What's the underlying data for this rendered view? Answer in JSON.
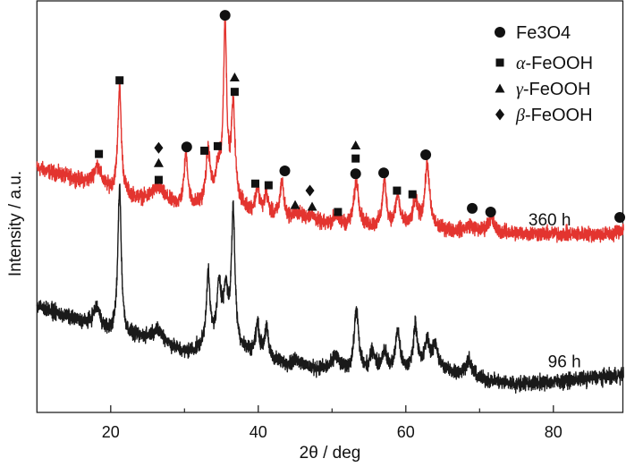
{
  "chart_data": {
    "type": "line",
    "title": "",
    "xlabel": "2θ / deg",
    "ylabel": "Intensity / a.u.",
    "xlim": [
      10,
      89.5
    ],
    "ylim": [
      0,
      100
    ],
    "x_ticks": [
      20,
      40,
      60,
      80
    ],
    "x_minor_ticks": [
      30,
      50,
      70
    ],
    "y_ticks": [],
    "grid": false,
    "legend_position": "top-right",
    "legend": [
      {
        "label": "Fe3O4",
        "marker": "circle"
      },
      {
        "label": "α-FeOOH",
        "marker": "square"
      },
      {
        "label": "γ-FeOOH",
        "marker": "triangle"
      },
      {
        "label": "β-FeOOH",
        "marker": "diamond"
      }
    ],
    "series": [
      {
        "name": "360 h",
        "color": "#e3342f",
        "label_position": [
          79.5,
          47
        ],
        "baseline": [
          [
            10,
            59.3
          ],
          [
            15,
            56.7
          ],
          [
            20,
            53.5
          ],
          [
            25,
            50.6
          ],
          [
            30,
            49.1
          ],
          [
            35,
            48.5
          ],
          [
            40,
            47.6
          ],
          [
            45,
            45.9
          ],
          [
            50,
            44.8
          ],
          [
            55,
            44.8
          ],
          [
            60,
            44.8
          ],
          [
            65,
            44.2
          ],
          [
            70,
            43.7
          ],
          [
            80,
            43.3
          ],
          [
            88,
            43.3
          ],
          [
            89.5,
            44.8
          ]
        ],
        "peaks": [
          [
            18.2,
            5,
            0.6
          ],
          [
            21.2,
            26,
            0.28
          ],
          [
            26.4,
            4,
            1.2
          ],
          [
            30.2,
            13,
            0.3
          ],
          [
            33.2,
            12.5,
            0.35
          ],
          [
            34.6,
            6,
            0.4
          ],
          [
            35.5,
            5,
            1.6
          ],
          [
            35.5,
            40,
            0.25
          ],
          [
            36.6,
            22,
            0.3
          ],
          [
            39.9,
            6,
            0.3
          ],
          [
            41.1,
            5,
            0.3
          ],
          [
            43.2,
            9,
            0.3
          ],
          [
            45.3,
            2,
            0.8
          ],
          [
            47.2,
            2,
            0.8
          ],
          [
            50.5,
            2.5,
            0.6
          ],
          [
            53.3,
            11,
            0.4
          ],
          [
            57.1,
            11,
            0.32
          ],
          [
            58.9,
            7.5,
            0.35
          ],
          [
            61.3,
            6,
            0.4
          ],
          [
            62.9,
            15.5,
            0.38
          ],
          [
            68.7,
            1.5,
            0.6
          ],
          [
            71.5,
            3.5,
            0.5
          ]
        ],
        "noise": 1.1,
        "markers": [
          {
            "phase": "square",
            "x": 18.4,
            "y": 62.8
          },
          {
            "phase": "square",
            "x": 21.2,
            "y": 80.7
          },
          {
            "phase": "diamond",
            "x": 26.5,
            "y": 64.3
          },
          {
            "phase": "triangle",
            "x": 26.5,
            "y": 60.6
          },
          {
            "phase": "square",
            "x": 26.5,
            "y": 56.5
          },
          {
            "phase": "circle",
            "x": 30.3,
            "y": 64.5
          },
          {
            "phase": "square",
            "x": 32.7,
            "y": 63.6
          },
          {
            "phase": "square",
            "x": 34.5,
            "y": 64.7
          },
          {
            "phase": "circle",
            "x": 35.5,
            "y": 96.5
          },
          {
            "phase": "triangle",
            "x": 36.8,
            "y": 81.4
          },
          {
            "phase": "square",
            "x": 36.8,
            "y": 77.9
          },
          {
            "phase": "square",
            "x": 39.6,
            "y": 55.6
          },
          {
            "phase": "square",
            "x": 41.4,
            "y": 55.2
          },
          {
            "phase": "circle",
            "x": 43.6,
            "y": 58.7
          },
          {
            "phase": "triangle",
            "x": 45.0,
            "y": 50.4
          },
          {
            "phase": "diamond",
            "x": 47.0,
            "y": 53.9
          },
          {
            "phase": "triangle",
            "x": 47.3,
            "y": 50.0
          },
          {
            "phase": "square",
            "x": 50.8,
            "y": 48.7
          },
          {
            "phase": "triangle",
            "x": 53.2,
            "y": 64.9
          },
          {
            "phase": "square",
            "x": 53.2,
            "y": 61.7
          },
          {
            "phase": "circle",
            "x": 53.2,
            "y": 58.0
          },
          {
            "phase": "circle",
            "x": 57.0,
            "y": 58.2
          },
          {
            "phase": "square",
            "x": 58.8,
            "y": 53.9
          },
          {
            "phase": "square",
            "x": 60.9,
            "y": 53.0
          },
          {
            "phase": "circle",
            "x": 62.7,
            "y": 62.6
          },
          {
            "phase": "circle",
            "x": 69.0,
            "y": 49.6
          },
          {
            "phase": "circle",
            "x": 71.5,
            "y": 48.7
          },
          {
            "phase": "circle",
            "x": 89.0,
            "y": 47.4
          }
        ]
      },
      {
        "name": "96 h",
        "color": "#1a1a1a",
        "label_position": [
          81.5,
          12.5
        ],
        "baseline": [
          [
            10,
            25.8
          ],
          [
            15,
            22.5
          ],
          [
            20,
            18.8
          ],
          [
            25,
            17.1
          ],
          [
            30,
            13.9
          ],
          [
            35,
            14.5
          ],
          [
            40,
            13.4
          ],
          [
            45,
            10.6
          ],
          [
            50,
            10.2
          ],
          [
            55,
            9.5
          ],
          [
            60,
            9.5
          ],
          [
            65,
            10.2
          ],
          [
            70,
            8
          ],
          [
            75,
            6.9
          ],
          [
            80,
            7.4
          ],
          [
            89.5,
            9.1
          ]
        ],
        "peaks": [
          [
            18.1,
            5,
            0.6
          ],
          [
            21.2,
            36,
            0.28
          ],
          [
            26.4,
            3.5,
            1.2
          ],
          [
            33.2,
            17,
            0.3
          ],
          [
            34.7,
            12,
            0.3
          ],
          [
            35.2,
            5,
            1.5
          ],
          [
            35.6,
            10,
            0.3
          ],
          [
            36.6,
            32,
            0.28
          ],
          [
            39.9,
            7,
            0.3
          ],
          [
            41.1,
            7,
            0.3
          ],
          [
            45.3,
            2,
            0.8
          ],
          [
            50.5,
            3.5,
            0.5
          ],
          [
            53.3,
            15,
            0.35
          ],
          [
            55.5,
            5,
            0.4
          ],
          [
            57.1,
            5,
            0.4
          ],
          [
            58.9,
            10,
            0.35
          ],
          [
            61.3,
            11,
            0.35
          ],
          [
            62.9,
            7,
            0.4
          ],
          [
            64.0,
            6,
            0.4
          ],
          [
            68.5,
            4,
            0.5
          ]
        ],
        "noise": 1.1,
        "markers": []
      }
    ]
  }
}
